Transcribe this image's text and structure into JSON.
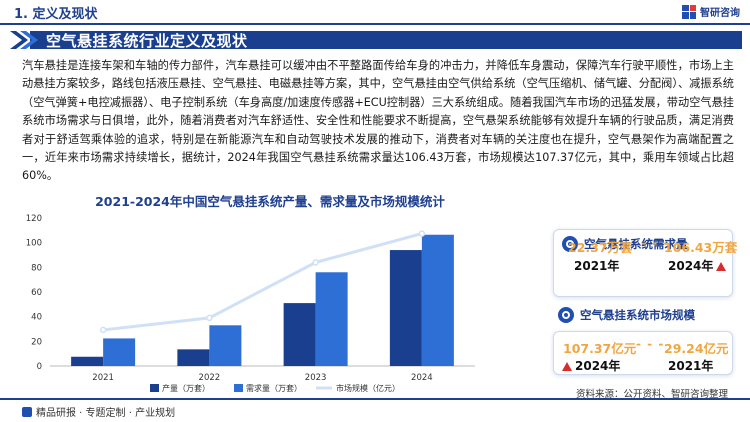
{
  "header": {
    "section_title": "1. 定义及现状",
    "logo_text": "智研咨询"
  },
  "banner": {
    "title": "空气悬挂系统行业定义及现状"
  },
  "paragraph": "汽车悬挂是连接车架和车轴的传力部件，汽车悬挂可以缓冲由不平整路面传给车身的冲击力，并降低车身震动，保障汽车行驶平顺性，市场上主动悬挂方案较多，路线包括液压悬挂、空气悬挂、电磁悬挂等方案，其中，空气悬挂由空气供给系统（空气压缩机、储气罐、分配阀）、减振系统（空气弹簧+电控减振器）、电子控制系统（车身高度/加速度传感器+ECU控制器）三大系统组成。随着我国汽车市场的迅猛发展，带动空气悬挂系统市场需求与日俱增，此外，随着消费者对汽车舒适性、安全性和性能要求不断提高，空气悬架系统能够有效提升车辆的行驶品质，满足消费者对于舒适驾乘体验的追求，特别是在新能源汽车和自动驾驶技术发展的推动下，消费者对车辆的关注度也在提升，空气悬架作为高端配置之一，近年来市场需求持续增长，据统计，2024年我国空气悬挂系统需求量达106.43万套，市场规模达107.37亿元，其中，乘用车领域占比超60%。",
  "chart_data": {
    "type": "bar",
    "title": "2021-2024年中国空气悬挂系统产量、需求量及市场规模统计",
    "categories": [
      "2021",
      "2022",
      "2023",
      "2024"
    ],
    "y_ticks": [
      "0",
      "20",
      "40",
      "60",
      "80",
      "100",
      "120"
    ],
    "ylim": [
      0,
      120
    ],
    "series": [
      {
        "name": "产量（万套）",
        "kind": "bar",
        "color": "#1a3f8f",
        "values": [
          7.5,
          13.5,
          51,
          94
        ]
      },
      {
        "name": "需求量（万套）",
        "kind": "bar",
        "color": "#2e6fd6",
        "values": [
          22.37,
          33,
          76,
          106.43
        ]
      },
      {
        "name": "市场规模（亿元）",
        "kind": "line",
        "color": "#cfe0f7",
        "values": [
          29.24,
          39,
          84,
          107.37
        ]
      }
    ],
    "legend_position": "bottom"
  },
  "card_demand": {
    "title": "空气悬挂系统需求量",
    "left_value": "22.37万套",
    "right_value": "106.43万套",
    "left_year": "2021年",
    "right_year": "2024年"
  },
  "card_market": {
    "title": "空气悬挂系统市场规模",
    "left_value": "107.37亿元",
    "right_value": "29.24亿元",
    "left_year": "2024年",
    "right_year": "2021年"
  },
  "footer": {
    "left_text": "精品研报 · 专题定制 · 产业规划",
    "source": "资料来源：公开资料、智研咨询整理"
  },
  "colors": {
    "brand": "#1f3f8f",
    "accent_orange": "#f0a640",
    "accent_red": "#d32f2f"
  }
}
